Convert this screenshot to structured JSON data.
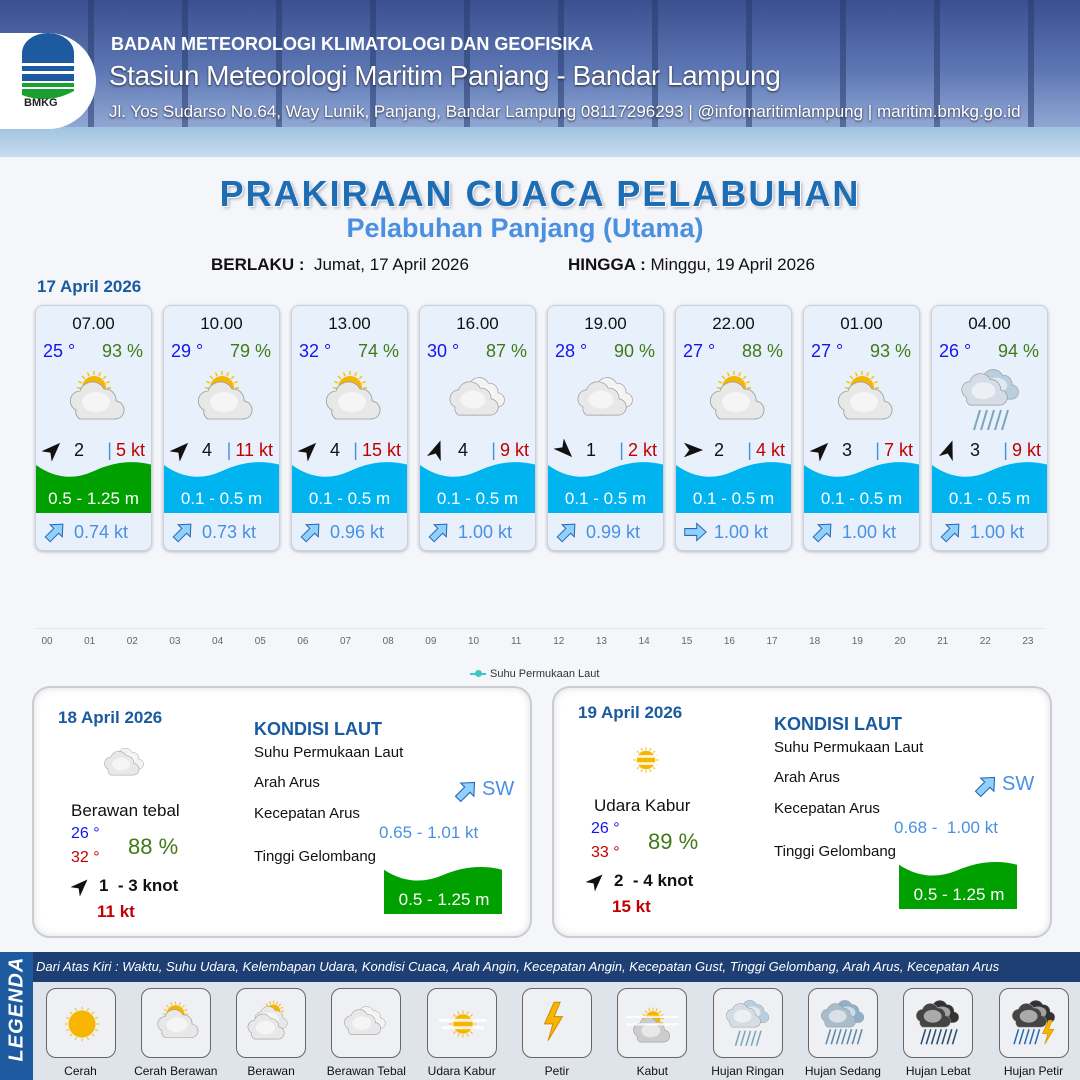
{
  "header": {
    "agency": "BADAN METEOROLOGI KLIMATOLOGI DAN GEOFISIKA",
    "station": "Stasiun Meteorologi Maritim Panjang - Bandar Lampung",
    "address": "Jl. Yos Sudarso No.64, Way Lunik, Panjang, Bandar Lampung 08117296293 | @infomaritimlampung | maritim.bmkg.go.id",
    "logo_text": "BMKG"
  },
  "title": "PRAKIRAAN CUACA PELABUHAN",
  "subtitle": "Pelabuhan Panjang (Utama)",
  "validity": {
    "from_label": "BERLAKU :",
    "from": "Jumat, 17 April 2026",
    "to_label": "HINGGA :",
    "to": "Minggu, 19 April 2026"
  },
  "day1": {
    "date": "17 April 2026",
    "forecasts": [
      {
        "time": "07.00",
        "temp": "25 °",
        "hum": "93 %",
        "weather": "cerah-berawan",
        "wind_dir_deg": 45,
        "wind": "2",
        "gust": "5 kt",
        "wave": "0.5 - 1.25 m",
        "wave_color": "#00a000",
        "current_dir": "SW",
        "current": "0.74 kt"
      },
      {
        "time": "10.00",
        "temp": "29 °",
        "hum": "79 %",
        "weather": "cerah-berawan",
        "wind_dir_deg": 45,
        "wind": "4",
        "gust": "11 kt",
        "wave": "0.1 - 0.5 m",
        "wave_color": "#00b4f0",
        "current_dir": "SW",
        "current": "0.73 kt"
      },
      {
        "time": "13.00",
        "temp": "32 °",
        "hum": "74 %",
        "weather": "cerah-berawan",
        "wind_dir_deg": 45,
        "wind": "4",
        "gust": "15 kt",
        "wave": "0.1 - 0.5 m",
        "wave_color": "#00b4f0",
        "current_dir": "SW",
        "current": "0.96 kt"
      },
      {
        "time": "16.00",
        "temp": "30 °",
        "hum": "87 %",
        "weather": "berawan-tebal",
        "wind_dir_deg": 20,
        "wind": "4",
        "gust": "9 kt",
        "wave": "0.1 - 0.5 m",
        "wave_color": "#00b4f0",
        "current_dir": "SW",
        "current": "1.00 kt"
      },
      {
        "time": "19.00",
        "temp": "28 °",
        "hum": "90 %",
        "weather": "berawan-tebal",
        "wind_dir_deg": 135,
        "wind": "1",
        "gust": "2 kt",
        "wave": "0.1 - 0.5 m",
        "wave_color": "#00b4f0",
        "current_dir": "SW",
        "current": "0.99 kt"
      },
      {
        "time": "22.00",
        "temp": "27 °",
        "hum": "88 %",
        "weather": "cerah-berawan",
        "wind_dir_deg": 90,
        "wind": "2",
        "gust": "4 kt",
        "wave": "0.1 - 0.5 m",
        "wave_color": "#00b4f0",
        "current_dir": "W",
        "current": "1.00 kt"
      },
      {
        "time": "01.00",
        "temp": "27 °",
        "hum": "93 %",
        "weather": "cerah-berawan",
        "wind_dir_deg": 45,
        "wind": "3",
        "gust": "7 kt",
        "wave": "0.1 - 0.5 m",
        "wave_color": "#00b4f0",
        "current_dir": "SW",
        "current": "1.00 kt"
      },
      {
        "time": "04.00",
        "temp": "26 °",
        "hum": "94 %",
        "weather": "hujan-ringan",
        "wind_dir_deg": 20,
        "wind": "3",
        "gust": "9 kt",
        "wave": "0.1 - 0.5 m",
        "wave_color": "#00b4f0",
        "current_dir": "SW",
        "current": "1.00 kt"
      }
    ]
  },
  "sst_axis": {
    "ticks": [
      "00",
      "01",
      "02",
      "03",
      "04",
      "05",
      "06",
      "07",
      "08",
      "09",
      "10",
      "11",
      "12",
      "13",
      "14",
      "15",
      "16",
      "17",
      "18",
      "19",
      "20",
      "21",
      "22",
      "23"
    ],
    "legend": "Suhu Permukaan Laut",
    "color": "#3cc7c2"
  },
  "daily": [
    {
      "date": "18 April 2026",
      "weather": "berawan-tebal",
      "condition": "Berawan tebal",
      "tmin": "26 °",
      "tmax": "32 °",
      "hum": "88 %",
      "wind_dir_deg": 45,
      "wind": "1  - 3 knot",
      "gust": "11 kt",
      "sea_title": "KONDISI LAUT",
      "sst_label": "Suhu Permukaan Laut",
      "cur_dir_label": "Arah Arus",
      "cur_dir": "SW",
      "cur_spd_label": "Kecepatan Arus",
      "cur_spd": "0.65 - 1.01 kt",
      "wave_label": "Tinggi Gelombang",
      "wave": "0.5 - 1.25 m",
      "wave_color": "#00a000"
    },
    {
      "date": "19 April 2026",
      "weather": "udara-kabur",
      "condition": "Udara Kabur",
      "tmin": "26 °",
      "tmax": "33 °",
      "hum": "89 %",
      "wind_dir_deg": 45,
      "wind": "2  - 4 knot",
      "gust": "15 kt",
      "sea_title": "KONDISI LAUT",
      "sst_label": "Suhu Permukaan Laut",
      "cur_dir_label": "Arah Arus",
      "cur_dir": "SW",
      "cur_spd_label": "Kecepatan Arus",
      "cur_spd": "0.68 -  1.00 kt",
      "wave_label": "Tinggi Gelombang",
      "wave": "0.5 - 1.25 m",
      "wave_color": "#00a000"
    }
  ],
  "legend": {
    "title": "LEGENDA",
    "description": "Dari Atas Kiri : Waktu, Suhu Udara, Kelembapan Udara, Kondisi Cuaca, Arah Angin, Kecepatan Angin, Kecepatan Gust, Tinggi Gelombang, Arah Arus, Kecepatan Arus",
    "items": [
      {
        "name": "Cerah",
        "icon": "cerah"
      },
      {
        "name": "Cerah Berawan",
        "icon": "cerah-berawan"
      },
      {
        "name": "Berawan",
        "icon": "berawan"
      },
      {
        "name": "Berawan Tebal",
        "icon": "berawan-tebal"
      },
      {
        "name": "Udara Kabur",
        "icon": "udara-kabur"
      },
      {
        "name": "Petir",
        "icon": "petir"
      },
      {
        "name": "Kabut",
        "icon": "kabut"
      },
      {
        "name": "Hujan Ringan",
        "icon": "hujan-ringan"
      },
      {
        "name": "Hujan Sedang",
        "icon": "hujan-sedang"
      },
      {
        "name": "Hujan Lebat",
        "icon": "hujan-lebat"
      },
      {
        "name": "Hujan Petir",
        "icon": "hujan-petir"
      }
    ]
  },
  "colors": {
    "title": "#1d6db4",
    "subtitle": "#4a90e2",
    "temp": "#1414f0",
    "humidity": "#3f7a16",
    "gust": "#c00000",
    "wave_high": "#00a000",
    "wave_low": "#00b4f0",
    "current": "#4a90e2"
  }
}
